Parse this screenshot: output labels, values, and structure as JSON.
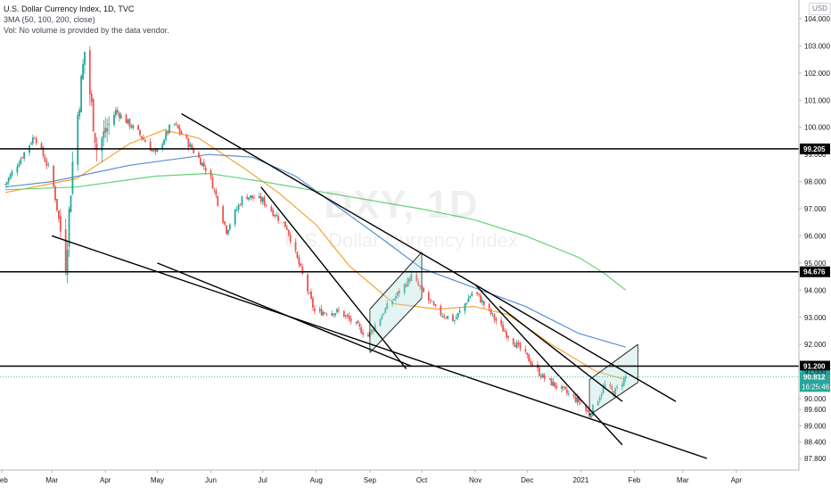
{
  "header": {
    "title": "U.S. Dollar Currency Index, 1D, TVC",
    "indicator": "3MA (50, 100, 200, close)",
    "volume_note": "Vol: No volume is provided by the data vendor.",
    "currency": "USD"
  },
  "watermark": {
    "symbol": "DXY, 1D",
    "name": "U.S. Dollar Currency Index"
  },
  "colors": {
    "up": "#26a69a",
    "down": "#ef5350",
    "ma50": "#f7a234",
    "ma100": "#5b8fd1",
    "ma200": "#66d279",
    "lines": "#000000",
    "channel_fill": "#b2dfdb",
    "last_price_bg": "#26a69a"
  },
  "chart_data": {
    "type": "candlestick",
    "y_scale": "linear",
    "ylim": [
      87.6,
      104.3
    ],
    "x_tick_labels": [
      "Feb",
      "Mar",
      "Apr",
      "May",
      "Jun",
      "Jul",
      "Aug",
      "Sep",
      "Oct",
      "Nov",
      "Dec",
      "2021",
      "Feb",
      "Mar",
      "Apr"
    ],
    "y_tick_labels": [
      "104.000",
      "103.000",
      "102.000",
      "101.000",
      "100.000",
      "99.000",
      "98.000",
      "97.000",
      "96.000",
      "95.000",
      "94.000",
      "93.000",
      "92.000",
      "91.000",
      "90.000",
      "89.600",
      "89.000",
      "88.400",
      "87.800"
    ],
    "y_tick_values": [
      104,
      103,
      102,
      101,
      100,
      99,
      98,
      97,
      96,
      95,
      94,
      93,
      92,
      91,
      90,
      89.6,
      89,
      88.4,
      87.8
    ],
    "horizontal_levels": [
      {
        "label": "99.205",
        "value": 99.205
      },
      {
        "label": "94.676",
        "value": 94.676
      },
      {
        "label": "91.200",
        "value": 91.2
      }
    ],
    "last_price": {
      "label": "90.812",
      "value": 90.812
    },
    "countdown": "16:25:46",
    "price_path": [
      [
        "2020-02-03",
        97.9
      ],
      [
        "2020-02-20",
        99.7
      ],
      [
        "2020-03-01",
        98.2
      ],
      [
        "2020-03-09",
        95.0
      ],
      [
        "2020-03-13",
        98.7
      ],
      [
        "2020-03-20",
        102.8
      ],
      [
        "2020-03-27",
        99.2
      ],
      [
        "2020-04-07",
        100.6
      ],
      [
        "2020-04-20",
        99.8
      ],
      [
        "2020-04-30",
        99.0
      ],
      [
        "2020-05-10",
        100.2
      ],
      [
        "2020-05-20",
        99.3
      ],
      [
        "2020-05-31",
        98.3
      ],
      [
        "2020-06-10",
        96.2
      ],
      [
        "2020-06-20",
        97.5
      ],
      [
        "2020-07-01",
        97.3
      ],
      [
        "2020-07-15",
        96.3
      ],
      [
        "2020-07-31",
        93.2
      ],
      [
        "2020-08-15",
        93.2
      ],
      [
        "2020-08-31",
        92.3
      ],
      [
        "2020-09-10",
        93.3
      ],
      [
        "2020-09-25",
        94.5
      ],
      [
        "2020-10-10",
        93.2
      ],
      [
        "2020-10-20",
        92.9
      ],
      [
        "2020-10-31",
        94.0
      ],
      [
        "2020-11-15",
        92.7
      ],
      [
        "2020-11-30",
        91.6
      ],
      [
        "2020-12-10",
        90.8
      ],
      [
        "2020-12-31",
        89.9
      ],
      [
        "2021-01-06",
        89.4
      ],
      [
        "2021-01-15",
        90.5
      ],
      [
        "2021-01-20",
        90.2
      ],
      [
        "2021-01-27",
        90.812
      ]
    ],
    "moving_averages": [
      {
        "name": "MA 50",
        "period": 50,
        "color": "#f7a234",
        "points": [
          [
            "2020-02-03",
            97.6
          ],
          [
            "2020-03-15",
            98.1
          ],
          [
            "2020-04-15",
            99.4
          ],
          [
            "2020-05-05",
            99.9
          ],
          [
            "2020-05-25",
            99.6
          ],
          [
            "2020-06-20",
            98.5
          ],
          [
            "2020-07-10",
            97.6
          ],
          [
            "2020-08-01",
            96.4
          ],
          [
            "2020-08-20",
            94.9
          ],
          [
            "2020-09-15",
            93.5
          ],
          [
            "2020-10-10",
            93.3
          ],
          [
            "2020-10-31",
            93.4
          ],
          [
            "2020-11-20",
            93.1
          ],
          [
            "2020-12-15",
            92.0
          ],
          [
            "2021-01-10",
            91.0
          ],
          [
            "2021-01-27",
            90.7
          ]
        ]
      },
      {
        "name": "MA 100",
        "period": 100,
        "color": "#5b8fd1",
        "points": [
          [
            "2020-02-03",
            97.8
          ],
          [
            "2020-03-01",
            98.0
          ],
          [
            "2020-04-15",
            98.6
          ],
          [
            "2020-05-31",
            99.0
          ],
          [
            "2020-06-25",
            98.9
          ],
          [
            "2020-07-20",
            98.2
          ],
          [
            "2020-08-15",
            97.0
          ],
          [
            "2020-09-10",
            95.8
          ],
          [
            "2020-10-01",
            94.8
          ],
          [
            "2020-10-31",
            94.1
          ],
          [
            "2020-11-30",
            93.4
          ],
          [
            "2020-12-31",
            92.4
          ],
          [
            "2021-01-27",
            91.9
          ]
        ]
      },
      {
        "name": "MA 200",
        "period": 200,
        "color": "#66d279",
        "points": [
          [
            "2020-02-03",
            97.7
          ],
          [
            "2020-03-15",
            97.8
          ],
          [
            "2020-04-30",
            98.2
          ],
          [
            "2020-05-31",
            98.3
          ],
          [
            "2020-07-01",
            98.0
          ],
          [
            "2020-08-15",
            97.5
          ],
          [
            "2020-09-30",
            97.0
          ],
          [
            "2020-10-31",
            96.6
          ],
          [
            "2020-11-30",
            96.0
          ],
          [
            "2020-12-31",
            95.2
          ],
          [
            "2021-01-15",
            94.6
          ],
          [
            "2021-01-27",
            94.0
          ]
        ]
      }
    ],
    "trendlines": [
      {
        "from": [
          "2020-05-15",
          100.5
        ],
        "to": [
          "2021-02-25",
          89.9
        ]
      },
      {
        "from": [
          "2020-03-01",
          96.0
        ],
        "to": [
          "2021-03-15",
          87.8
        ]
      },
      {
        "from": [
          "2020-05-01",
          95.0
        ],
        "to": [
          "2020-09-25",
          91.2
        ]
      },
      {
        "from": [
          "2020-06-30",
          97.8
        ],
        "to": [
          "2020-09-22",
          91.1
        ]
      },
      {
        "from": [
          "2020-11-01",
          94.2
        ],
        "to": [
          "2021-01-25",
          88.3
        ]
      },
      {
        "from": [
          "2020-11-15",
          93.4
        ],
        "to": [
          "2021-01-25",
          89.9
        ]
      }
    ],
    "channels": [
      {
        "upper": [
          [
            "2020-09-01",
            93.3
          ],
          [
            "2020-10-01",
            95.4
          ]
        ],
        "lower": [
          [
            "2020-09-01",
            91.7
          ],
          [
            "2020-10-01",
            93.7
          ]
        ]
      },
      {
        "upper": [
          [
            "2021-01-06",
            90.7
          ],
          [
            "2021-02-03",
            92.0
          ]
        ],
        "lower": [
          [
            "2021-01-06",
            89.4
          ],
          [
            "2021-02-03",
            90.6
          ]
        ]
      }
    ]
  }
}
